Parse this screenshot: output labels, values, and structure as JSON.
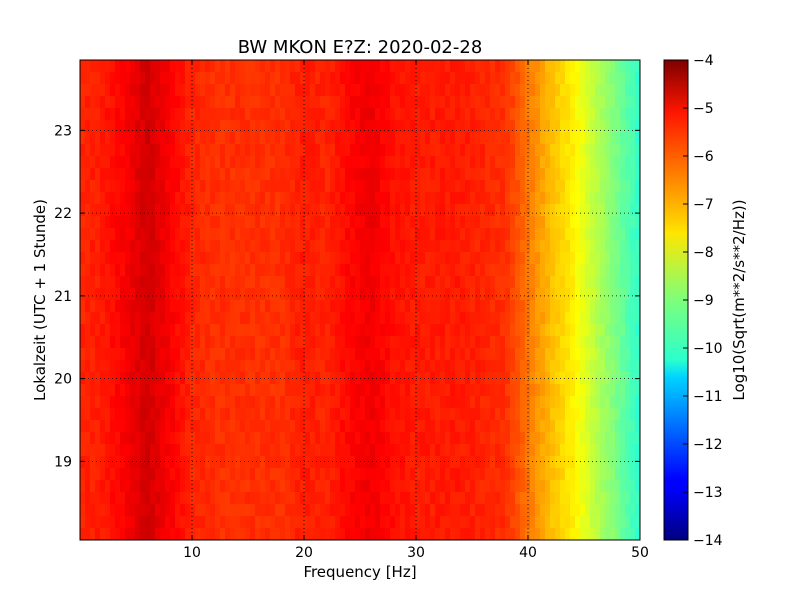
{
  "chart_data": {
    "type": "heatmap",
    "title": "BW MKON E?Z: 2020-02-28",
    "xlabel": "Frequency [Hz]",
    "ylabel": "Lokalzeit (UTC + 1 Stunde)",
    "colorbar_label": "Log10(Sqrt(m**2/s**2/Hz))",
    "xlim": [
      0,
      50
    ],
    "ylim": [
      23.85,
      18.05
    ],
    "x_ticks": [
      10,
      20,
      30,
      40,
      50
    ],
    "y_ticks": [
      19,
      20,
      21,
      22,
      23
    ],
    "colorbar_range": [
      -14,
      -4
    ],
    "colorbar_ticks": [
      -4,
      -5,
      -6,
      -7,
      -8,
      -9,
      -10,
      -11,
      -12,
      -13,
      -14
    ],
    "colormap": "jet",
    "grid": true,
    "frequency_hz": [
      0,
      2,
      4,
      6,
      8,
      10,
      12,
      14,
      16,
      18,
      20,
      22,
      24,
      26,
      28,
      30,
      32,
      34,
      36,
      38,
      40,
      42,
      44,
      46,
      48,
      50
    ],
    "mean_level_log10": [
      -5.6,
      -5.5,
      -5.2,
      -4.8,
      -5.2,
      -5.6,
      -5.7,
      -5.7,
      -5.7,
      -5.7,
      -5.5,
      -5.6,
      -5.3,
      -5.1,
      -5.4,
      -5.5,
      -5.5,
      -5.5,
      -5.6,
      -5.7,
      -6.4,
      -7.1,
      -7.6,
      -8.4,
      -9.1,
      -9.8
    ]
  }
}
